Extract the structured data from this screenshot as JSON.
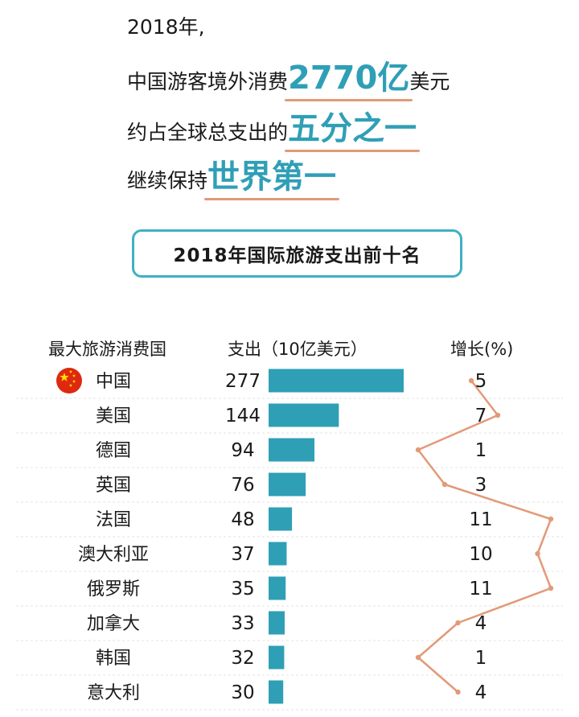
{
  "intro": {
    "line1": "2018年,",
    "line2_pre": "中国游客境外消费",
    "line2_hl": "2770亿",
    "line2_post": "美元",
    "line3_pre": "约占全球总支出的",
    "line3_hl": "五分之一",
    "line4_pre": "继续保持",
    "line4_hl": "世界第一"
  },
  "chart_data": {
    "type": "bar",
    "title": "2018年国际旅游支出前十名",
    "column_headers": {
      "country": "最大旅游消费国",
      "spending": "支出（10亿美元）",
      "growth": "增长(%)"
    },
    "categories": [
      "中国",
      "美国",
      "德国",
      "英国",
      "法国",
      "澳大利亚",
      "俄罗斯",
      "加拿大",
      "韩国",
      "意大利"
    ],
    "series": [
      {
        "values": [
          277,
          144,
          94,
          76,
          48,
          37,
          35,
          33,
          32,
          30
        ]
      },
      {
        "values": [
          5,
          7,
          1,
          3,
          11,
          10,
          11,
          4,
          1,
          4
        ]
      }
    ],
    "flag_icon": "china-flag-icon",
    "colors": {
      "bar": "#2f9fb6",
      "growth_line": "#e29a78",
      "accent": "#3fb0c3"
    }
  }
}
